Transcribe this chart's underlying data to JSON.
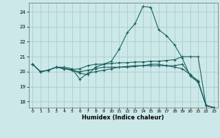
{
  "title": "",
  "xlabel": "Humidex (Indice chaleur)",
  "bg_color": "#cce8e8",
  "line_color": "#1a5f5f",
  "grid_color": "#aacccc",
  "xlim": [
    -0.5,
    23.5
  ],
  "ylim": [
    17.6,
    24.6
  ],
  "yticks": [
    18,
    19,
    20,
    21,
    22,
    23,
    24
  ],
  "xticks": [
    0,
    1,
    2,
    3,
    4,
    5,
    6,
    7,
    8,
    9,
    10,
    11,
    12,
    13,
    14,
    15,
    16,
    17,
    18,
    19,
    20,
    21,
    22,
    23
  ],
  "lines": [
    {
      "x": [
        0,
        1,
        2,
        3,
        4,
        5,
        6,
        7,
        8,
        9,
        10,
        11,
        12,
        13,
        14,
        15,
        16,
        17,
        18,
        19,
        20,
        21,
        22,
        23
      ],
      "y": [
        20.5,
        20.0,
        20.1,
        20.3,
        20.2,
        20.1,
        19.9,
        19.8,
        20.3,
        20.5,
        20.7,
        21.5,
        22.6,
        23.2,
        24.35,
        24.3,
        22.8,
        22.4,
        21.8,
        20.9,
        19.7,
        19.3,
        17.75,
        17.6
      ]
    },
    {
      "x": [
        0,
        1,
        2,
        3,
        4,
        5,
        6,
        7,
        8,
        9,
        10,
        11,
        12,
        13,
        14,
        15,
        16,
        17,
        18,
        19,
        20,
        21,
        22,
        23
      ],
      "y": [
        20.5,
        20.0,
        20.1,
        20.3,
        20.2,
        20.15,
        20.2,
        20.4,
        20.5,
        20.5,
        20.55,
        20.6,
        20.6,
        20.65,
        20.65,
        20.7,
        20.7,
        20.75,
        20.8,
        21.0,
        21.0,
        21.0,
        17.75,
        17.6
      ]
    },
    {
      "x": [
        0,
        1,
        2,
        3,
        4,
        5,
        6,
        7,
        8,
        9,
        10,
        11,
        12,
        13,
        14,
        15,
        16,
        17,
        18,
        19,
        20,
        21,
        22,
        23
      ],
      "y": [
        20.5,
        20.0,
        20.1,
        20.3,
        20.2,
        20.1,
        20.0,
        20.1,
        20.2,
        20.3,
        20.3,
        20.3,
        20.3,
        20.35,
        20.4,
        20.4,
        20.4,
        20.4,
        20.4,
        20.5,
        19.8,
        19.4,
        17.75,
        17.6
      ]
    },
    {
      "x": [
        0,
        1,
        2,
        3,
        4,
        5,
        6,
        7,
        8,
        9,
        10,
        11,
        12,
        13,
        14,
        15,
        16,
        17,
        18,
        19,
        20,
        21,
        22,
        23
      ],
      "y": [
        20.5,
        20.0,
        20.1,
        20.3,
        20.3,
        20.2,
        19.5,
        19.9,
        20.0,
        20.1,
        20.2,
        20.3,
        20.35,
        20.4,
        20.4,
        20.5,
        20.5,
        20.4,
        20.3,
        20.2,
        19.8,
        19.35,
        17.75,
        17.6
      ]
    }
  ]
}
